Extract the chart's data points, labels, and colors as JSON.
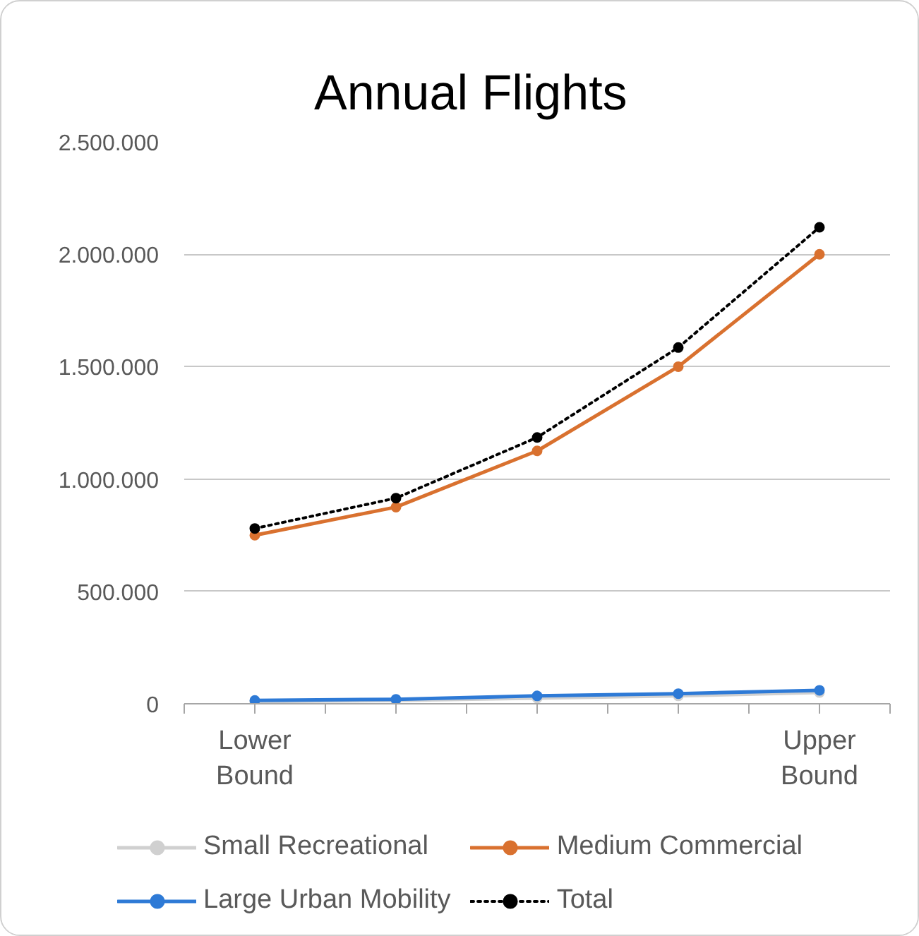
{
  "chart_data": {
    "type": "line",
    "title": "Annual Flights",
    "categories": [
      "Lower Bound",
      null,
      null,
      null,
      "Upper Bound"
    ],
    "series": [
      {
        "name": "Small Recreational",
        "color": "#d0d0d0",
        "values": [
          10000,
          15000,
          25000,
          35000,
          50000
        ]
      },
      {
        "name": "Medium Commercial",
        "color": "#d9712f",
        "values": [
          750000,
          875000,
          1125000,
          1500000,
          2000000
        ]
      },
      {
        "name": "Large Urban Mobility",
        "color": "#2e7ad6",
        "values": [
          15000,
          20000,
          35000,
          45000,
          60000
        ]
      },
      {
        "name": "Total",
        "color": "#000000",
        "line_style": "dotted",
        "values": [
          780000,
          915000,
          1185000,
          1585000,
          2120000
        ]
      }
    ],
    "ylim": [
      0,
      2500000
    ],
    "yticks": [
      0,
      {
        "value": 500000,
        "label": "500.000"
      },
      {
        "value": 1000000,
        "label": "1.000.000"
      },
      {
        "value": 1500000,
        "label": "1.500.000"
      },
      {
        "value": 2000000,
        "label": "2.000.000"
      },
      {
        "value": 2500000,
        "label": "2.500.000"
      }
    ],
    "grid": "y",
    "legend": "bottom",
    "marker": "circle",
    "line_style": "solid"
  }
}
